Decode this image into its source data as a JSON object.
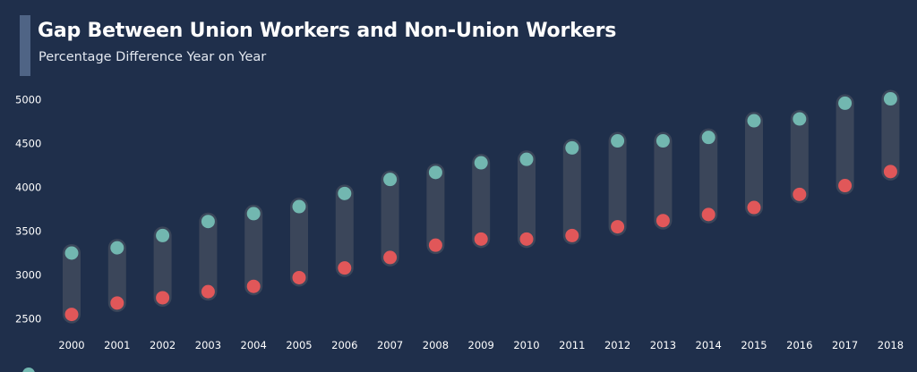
{
  "title": "Gap Between Union Workers and Non-Union Workers",
  "subtitle": "Percentage Difference Year on Year",
  "colors": {
    "background": "#1f2f4b",
    "accent_bar": "#4f6485",
    "union": "#72b7b0",
    "non_union": "#e15759",
    "connector": "#3b465a"
  },
  "chart_data": {
    "type": "scatter",
    "subtype": "dumbbell",
    "title": "Gap Between Union Workers and Non-Union Workers",
    "subtitle": "Percentage Difference Year on Year",
    "xlabel": "",
    "ylabel": "",
    "categories": [
      "2000",
      "2001",
      "2002",
      "2003",
      "2004",
      "2005",
      "2006",
      "2007",
      "2008",
      "2009",
      "2010",
      "2011",
      "2012",
      "2013",
      "2014",
      "2015",
      "2016",
      "2017",
      "2018"
    ],
    "series": [
      {
        "color": "#72b7b0",
        "values": [
          3250,
          3310,
          3450,
          3610,
          3700,
          3780,
          3930,
          4090,
          4170,
          4280,
          4320,
          4450,
          4530,
          4530,
          4570,
          4760,
          4780,
          4960,
          5010
        ]
      },
      {
        "color": "#e15759",
        "values": [
          2550,
          2680,
          2740,
          2810,
          2870,
          2970,
          3080,
          3200,
          3340,
          3410,
          3410,
          3450,
          3550,
          3620,
          3690,
          3770,
          3920,
          4020,
          4180
        ]
      }
    ],
    "y_ticks": [
      "2500",
      "3000",
      "3500",
      "4000",
      "4500",
      "5000"
    ],
    "ylim": [
      2400,
      5100
    ],
    "grid": false,
    "legend": "bottom-left"
  }
}
